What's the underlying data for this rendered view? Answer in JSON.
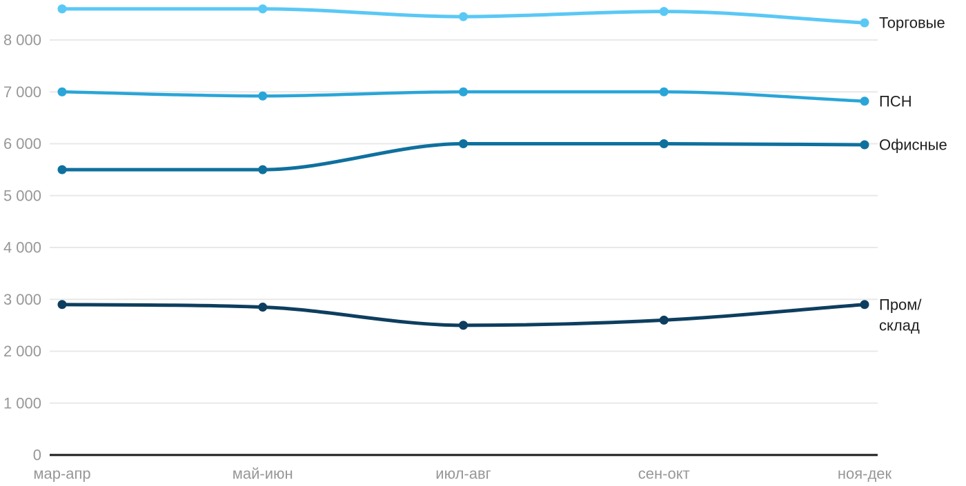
{
  "chart_data": {
    "type": "line",
    "curve": "monotone",
    "title": "",
    "xlabel": "",
    "ylabel": "",
    "categories": [
      "мар-апр",
      "май-июн",
      "июл-авг",
      "сен-окт",
      "ноя-дек"
    ],
    "series": [
      {
        "key": "torgovye",
        "name": "Торговые",
        "label_lines": [
          "Торговые"
        ],
        "values": [
          8600,
          8600,
          8450,
          8550,
          8330
        ],
        "color": "#5ac8f5",
        "stroke_width": 5
      },
      {
        "key": "psn",
        "name": "ПСН",
        "label_lines": [
          "ПСН"
        ],
        "values": [
          7000,
          6920,
          7000,
          7000,
          6820
        ],
        "color": "#2aa5d8",
        "stroke_width": 4.5
      },
      {
        "key": "ofisnye",
        "name": "Офисные",
        "label_lines": [
          "Офисные"
        ],
        "values": [
          5500,
          5500,
          6000,
          6000,
          5980
        ],
        "color": "#0f709e",
        "stroke_width": 5
      },
      {
        "key": "prom-sklad",
        "name": "Пром/склад",
        "label_lines": [
          "Пром/",
          "склад"
        ],
        "values": [
          2900,
          2850,
          2500,
          2600,
          2900
        ],
        "color": "#0e3e5f",
        "stroke_width": 5
      }
    ],
    "yticks": [
      {
        "value": 0,
        "label": "0"
      },
      {
        "value": 1000,
        "label": "1 000"
      },
      {
        "value": 2000,
        "label": "2 000"
      },
      {
        "value": 3000,
        "label": "3 000"
      },
      {
        "value": 4000,
        "label": "4 000"
      },
      {
        "value": 5000,
        "label": "5 000"
      },
      {
        "value": 6000,
        "label": "6 000"
      },
      {
        "value": 7000,
        "label": "7 000"
      },
      {
        "value": 8000,
        "label": "8 000"
      }
    ],
    "ylim": [
      0,
      8700
    ],
    "grid": true,
    "legend_position": "end-of-line",
    "marker": "circle",
    "colors": {
      "grid": "#e8e8e8",
      "axis": "#1a1a1a",
      "tick_text": "#979797",
      "series_label_text": "#1f1f1f"
    }
  }
}
